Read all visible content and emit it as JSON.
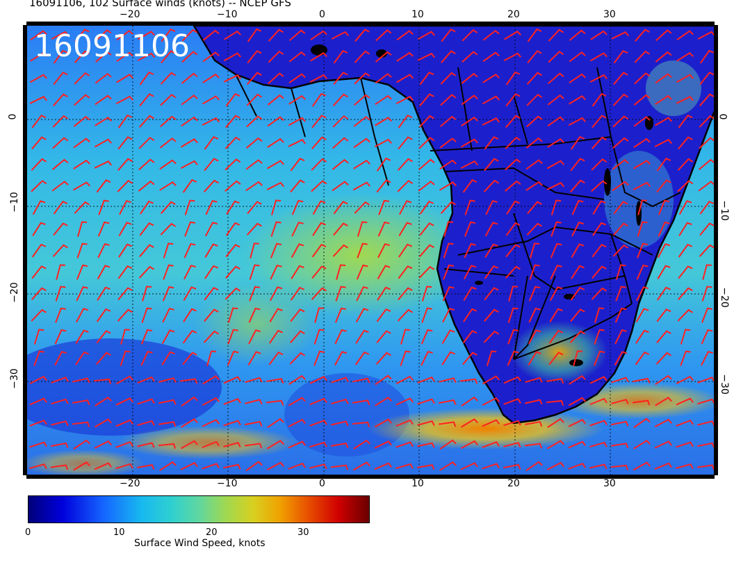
{
  "title": "16091106, 102 Surface winds (knots) -- NCEP GFS",
  "date_stamp": "16091106",
  "axes": {
    "lon_labels": [
      "−20",
      "−10",
      "0",
      "10",
      "20",
      "30"
    ],
    "lat_labels": [
      "0",
      "−10",
      "−20",
      "−30"
    ]
  },
  "colorbar": {
    "label": "Surface Wind Speed, knots",
    "ticks": [
      "0",
      "10",
      "20",
      "30"
    ],
    "range": [
      0,
      37
    ],
    "colors": [
      "#00007a",
      "#0000dc",
      "#1565ff",
      "#17b8f0",
      "#2fd0d0",
      "#5fd7a0",
      "#a0d850",
      "#d8d020",
      "#f0a000",
      "#e85000",
      "#d00000",
      "#6a0000"
    ]
  },
  "map": {
    "lon_range": [
      -30,
      40
    ],
    "lat_range": [
      -40,
      10
    ],
    "gridline_style": "dotted",
    "barb_color": "#ff2020",
    "coast_color": "#000000",
    "wind_speed_colors": {
      "land": "#1a1ad0",
      "ocean_low": "#2f7fff",
      "ocean_mid": "#34c8e0",
      "ocean_high": "#a8d848",
      "jet": "#f0a000"
    }
  }
}
